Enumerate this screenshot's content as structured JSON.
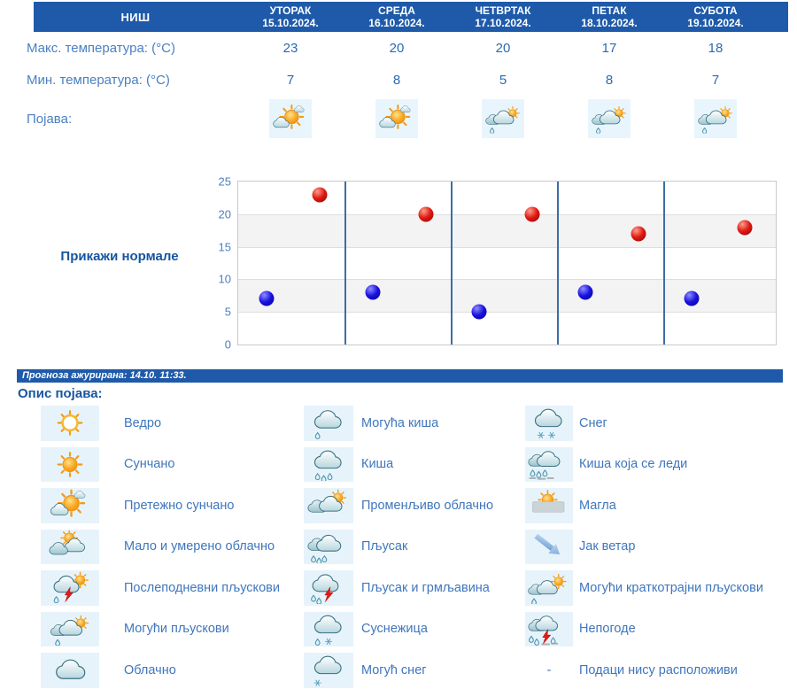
{
  "city": "НИШ",
  "days": [
    {
      "name": "УТОРАК",
      "date": "15.10.2024.",
      "max": "23",
      "min": "7",
      "icon": "mostly-sunny"
    },
    {
      "name": "СРЕДА",
      "date": "16.10.2024.",
      "max": "20",
      "min": "8",
      "icon": "mostly-sunny"
    },
    {
      "name": "ЧЕТВРТАК",
      "date": "17.10.2024.",
      "max": "20",
      "min": "5",
      "icon": "possible-showers"
    },
    {
      "name": "ПЕТАК",
      "date": "18.10.2024.",
      "max": "17",
      "min": "8",
      "icon": "possible-showers"
    },
    {
      "name": "СУБОТА",
      "date": "19.10.2024.",
      "max": "18",
      "min": "7",
      "icon": "possible-showers"
    }
  ],
  "table_labels": {
    "max": "Макс. температура: (°C)",
    "min": "Мин. температура: (°C)",
    "phenomenon": "Појава:"
  },
  "chart_data": {
    "type": "scatter",
    "categories": [
      "15.10.2024.",
      "16.10.2024.",
      "17.10.2024.",
      "18.10.2024.",
      "19.10.2024."
    ],
    "series": [
      {
        "name": "Макс. температура",
        "color": "#cc1111",
        "values": [
          23,
          20,
          20,
          17,
          18
        ]
      },
      {
        "name": "Мин. температура",
        "color": "#1111cc",
        "values": [
          7,
          8,
          5,
          8,
          7
        ]
      }
    ],
    "title": "",
    "xlabel": "",
    "ylabel": "",
    "ylim": [
      0,
      25
    ],
    "yticks": [
      0,
      5,
      10,
      15,
      20,
      25
    ],
    "grid": true,
    "legend_position": "none"
  },
  "normals_link": "Прикажи нормале",
  "updated": "Прогноза ажурирана:  14.10. 11:33.",
  "legend_title": "Опис појава:",
  "no_data_symbol": "-",
  "legend_columns": [
    [
      {
        "icon": "clear",
        "label": "Ведро"
      },
      {
        "icon": "sunny",
        "label": "Сунчано"
      },
      {
        "icon": "mostly-sunny",
        "label": "Претежно сунчано"
      },
      {
        "icon": "partly-cloudy",
        "label": "Мало и умерено облачно"
      },
      {
        "icon": "afternoon-showers",
        "label": "Послеподневни пљускови"
      },
      {
        "icon": "possible-showers",
        "label": "Могући пљускови"
      },
      {
        "icon": "cloudy",
        "label": "Облачно"
      }
    ],
    [
      {
        "icon": "possible-rain",
        "label": "Могућа киша"
      },
      {
        "icon": "rain",
        "label": "Киша"
      },
      {
        "icon": "variable-clouds",
        "label": "Променљиво облачно"
      },
      {
        "icon": "shower",
        "label": "Пљусак"
      },
      {
        "icon": "thunder-shower",
        "label": "Пљусак и грмљавина"
      },
      {
        "icon": "sleet",
        "label": "Суснежица"
      },
      {
        "icon": "possible-snow",
        "label": "Могућ снег"
      }
    ],
    [
      {
        "icon": "snow",
        "label": "Снег"
      },
      {
        "icon": "freezing-rain",
        "label": "Киша која се леди"
      },
      {
        "icon": "fog",
        "label": "Магла"
      },
      {
        "icon": "strong-wind",
        "label": "Јак ветар"
      },
      {
        "icon": "possible-brief-showers",
        "label": "Могући краткотрајни пљускови"
      },
      {
        "icon": "storms",
        "label": "Непогоде"
      },
      {
        "icon": "none",
        "label": "Подаци нису расположиви"
      }
    ]
  ],
  "colors": {
    "header_bg": "#1e5aa9",
    "max_point": "#cc1111",
    "min_point": "#1111cc",
    "label_blue": "#4a80c2",
    "link_blue": "#15569f"
  }
}
